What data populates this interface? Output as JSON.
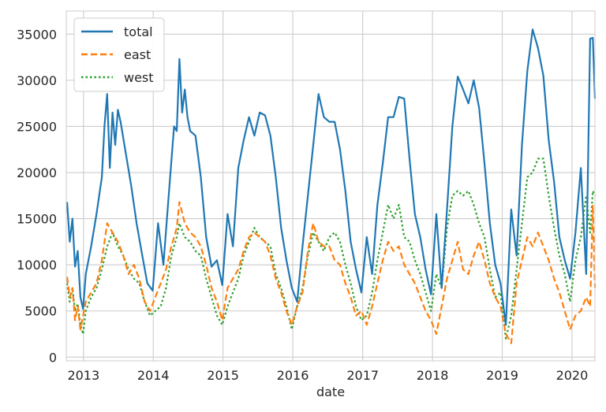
{
  "chart_data": {
    "type": "line",
    "title": "",
    "xlabel": "date",
    "ylabel": "",
    "xlim": [
      "2012-10-03",
      "2020-04-30"
    ],
    "ylim": [
      -400,
      37500
    ],
    "grid": true,
    "legend_position": "top-left",
    "x_ticks": [
      "2013",
      "2014",
      "2015",
      "2016",
      "2017",
      "2018",
      "2019",
      "2020"
    ],
    "y_ticks": [
      0,
      5000,
      10000,
      15000,
      20000,
      25000,
      30000,
      35000
    ],
    "series": [
      {
        "name": "total",
        "color": "#1f77b4",
        "style": "solid",
        "x": [
          "2012-10-07",
          "2012-10-21",
          "2012-11-04",
          "2012-11-18",
          "2012-12-02",
          "2012-12-16",
          "2012-12-30",
          "2013-01-13",
          "2013-02-10",
          "2013-03-10",
          "2013-04-07",
          "2013-04-21",
          "2013-05-05",
          "2013-05-19",
          "2013-06-02",
          "2013-06-16",
          "2013-06-30",
          "2013-07-14",
          "2013-08-11",
          "2013-09-08",
          "2013-10-06",
          "2013-11-03",
          "2013-12-01",
          "2013-12-29",
          "2014-01-26",
          "2014-02-23",
          "2014-03-23",
          "2014-04-20",
          "2014-05-04",
          "2014-05-18",
          "2014-06-01",
          "2014-06-15",
          "2014-06-29",
          "2014-07-13",
          "2014-08-10",
          "2014-09-07",
          "2014-10-05",
          "2014-11-02",
          "2014-11-30",
          "2014-12-28",
          "2015-01-25",
          "2015-02-22",
          "2015-03-22",
          "2015-04-19",
          "2015-05-17",
          "2015-06-14",
          "2015-07-12",
          "2015-08-09",
          "2015-09-06",
          "2015-10-04",
          "2015-11-01",
          "2015-11-29",
          "2015-12-27",
          "2016-01-24",
          "2016-02-21",
          "2016-03-20",
          "2016-04-17",
          "2016-05-15",
          "2016-06-12",
          "2016-07-10",
          "2016-08-07",
          "2016-09-04",
          "2016-10-02",
          "2016-10-30",
          "2016-11-27",
          "2016-12-25",
          "2017-01-22",
          "2017-02-19",
          "2017-03-19",
          "2017-04-16",
          "2017-05-14",
          "2017-06-11",
          "2017-07-09",
          "2017-08-06",
          "2017-09-03",
          "2017-10-01",
          "2017-10-29",
          "2017-11-26",
          "2017-12-24",
          "2018-01-21",
          "2018-02-18",
          "2018-03-18",
          "2018-04-15",
          "2018-05-13",
          "2018-06-10",
          "2018-07-08",
          "2018-08-05",
          "2018-09-02",
          "2018-09-30",
          "2018-10-28",
          "2018-11-25",
          "2018-12-23",
          "2019-01-20",
          "2019-02-17",
          "2019-03-17",
          "2019-04-14",
          "2019-05-12",
          "2019-06-09",
          "2019-07-07",
          "2019-08-04",
          "2019-09-01",
          "2019-09-29",
          "2019-10-27",
          "2019-11-24",
          "2019-12-22",
          "2020-01-19",
          "2020-02-16",
          "2020-03-15",
          "2020-04-05",
          "2020-04-19",
          "2020-04-30"
        ],
        "values": [
          16800,
          12500,
          15000,
          9800,
          11500,
          6500,
          5200,
          9000,
          12000,
          15500,
          19500,
          25000,
          28500,
          20500,
          26500,
          23000,
          26800,
          25500,
          22000,
          18500,
          14500,
          11200,
          8000,
          7200,
          14500,
          10000,
          17500,
          25000,
          24500,
          32300,
          26500,
          29000,
          26000,
          24500,
          24000,
          19500,
          13000,
          9800,
          10500,
          7800,
          15500,
          12000,
          20500,
          23500,
          26000,
          24000,
          26500,
          26200,
          24000,
          19500,
          14000,
          10500,
          7500,
          6000,
          12000,
          17500,
          23000,
          28500,
          26000,
          25500,
          25500,
          22500,
          18000,
          12500,
          9500,
          7000,
          13000,
          9000,
          16500,
          21000,
          26000,
          26000,
          28200,
          28000,
          21500,
          15500,
          13000,
          9500,
          6800,
          15500,
          7500,
          16000,
          25000,
          30400,
          29000,
          27500,
          30000,
          27000,
          21000,
          14500,
          10000,
          8000,
          3500,
          16000,
          11000,
          23000,
          31000,
          35500,
          33500,
          30500,
          23500,
          19000,
          13000,
          10500,
          8500,
          13500,
          20500,
          9000,
          34500,
          34600,
          28000
        ]
      },
      {
        "name": "east",
        "color": "#ff7f0e",
        "style": "dashed",
        "x": [
          "2012-10-07",
          "2012-10-21",
          "2012-11-04",
          "2012-11-18",
          "2012-12-02",
          "2012-12-16",
          "2012-12-30",
          "2013-01-13",
          "2013-02-10",
          "2013-03-10",
          "2013-04-07",
          "2013-05-05",
          "2013-06-02",
          "2013-06-30",
          "2013-07-28",
          "2013-08-25",
          "2013-09-22",
          "2013-10-20",
          "2013-11-17",
          "2013-12-15",
          "2014-01-12",
          "2014-02-09",
          "2014-03-09",
          "2014-04-06",
          "2014-05-04",
          "2014-05-18",
          "2014-06-15",
          "2014-07-13",
          "2014-08-10",
          "2014-09-07",
          "2014-10-05",
          "2014-11-02",
          "2014-11-30",
          "2014-12-28",
          "2015-01-25",
          "2015-02-22",
          "2015-03-22",
          "2015-04-19",
          "2015-05-17",
          "2015-06-14",
          "2015-07-12",
          "2015-08-09",
          "2015-09-06",
          "2015-10-04",
          "2015-11-01",
          "2015-11-29",
          "2015-12-27",
          "2016-01-24",
          "2016-02-21",
          "2016-03-20",
          "2016-04-17",
          "2016-05-15",
          "2016-06-12",
          "2016-07-10",
          "2016-08-07",
          "2016-09-04",
          "2016-10-02",
          "2016-10-30",
          "2016-11-27",
          "2016-12-25",
          "2017-01-22",
          "2017-02-19",
          "2017-03-19",
          "2017-04-16",
          "2017-05-14",
          "2017-06-11",
          "2017-07-09",
          "2017-08-06",
          "2017-09-03",
          "2017-10-01",
          "2017-10-29",
          "2017-11-26",
          "2017-12-24",
          "2018-01-21",
          "2018-02-18",
          "2018-03-18",
          "2018-04-15",
          "2018-05-13",
          "2018-06-10",
          "2018-07-08",
          "2018-08-05",
          "2018-09-02",
          "2018-09-30",
          "2018-10-28",
          "2018-11-25",
          "2018-12-23",
          "2019-01-20",
          "2019-02-17",
          "2019-03-17",
          "2019-04-14",
          "2019-05-12",
          "2019-06-09",
          "2019-07-07",
          "2019-08-04",
          "2019-09-01",
          "2019-09-29",
          "2019-10-27",
          "2019-11-24",
          "2019-12-22",
          "2020-01-19",
          "2020-02-16",
          "2020-03-15",
          "2020-04-05",
          "2020-04-19",
          "2020-04-30"
        ],
        "values": [
          8700,
          6500,
          7500,
          4000,
          5500,
          3000,
          4500,
          6000,
          7000,
          8000,
          10500,
          14500,
          13500,
          12500,
          11000,
          9000,
          10000,
          8500,
          6000,
          5000,
          6500,
          8000,
          9500,
          12000,
          14000,
          16800,
          14500,
          13500,
          13000,
          12000,
          10000,
          7500,
          6000,
          4000,
          7500,
          8500,
          9500,
          11500,
          13000,
          13500,
          13000,
          12500,
          11000,
          8500,
          7000,
          5000,
          3500,
          5500,
          7000,
          11500,
          14500,
          12500,
          12000,
          12000,
          10500,
          10000,
          8000,
          6500,
          4500,
          5000,
          3500,
          5500,
          8000,
          10500,
          12500,
          11500,
          12000,
          10000,
          9000,
          8000,
          6500,
          5000,
          4000,
          2500,
          5500,
          8500,
          10500,
          12500,
          9500,
          9000,
          11000,
          12500,
          10500,
          8000,
          6500,
          5500,
          2500,
          1500,
          8000,
          10500,
          13000,
          12000,
          13500,
          12000,
          10500,
          8500,
          7000,
          5000,
          3000,
          4500,
          5000,
          6500,
          5500,
          16500,
          7500
        ]
      },
      {
        "name": "west",
        "color": "#2ca02c",
        "style": "dotted",
        "x": [
          "2012-10-07",
          "2012-10-21",
          "2012-11-04",
          "2012-11-18",
          "2012-12-02",
          "2012-12-16",
          "2012-12-30",
          "2013-01-13",
          "2013-02-10",
          "2013-03-10",
          "2013-04-07",
          "2013-05-05",
          "2013-06-02",
          "2013-06-30",
          "2013-07-28",
          "2013-08-25",
          "2013-09-22",
          "2013-10-20",
          "2013-11-17",
          "2013-12-15",
          "2014-01-12",
          "2014-02-09",
          "2014-03-09",
          "2014-04-06",
          "2014-05-04",
          "2014-05-18",
          "2014-06-15",
          "2014-07-13",
          "2014-08-10",
          "2014-09-07",
          "2014-10-05",
          "2014-11-02",
          "2014-11-30",
          "2014-12-28",
          "2015-01-25",
          "2015-02-22",
          "2015-03-22",
          "2015-04-19",
          "2015-05-17",
          "2015-06-14",
          "2015-07-12",
          "2015-08-09",
          "2015-09-06",
          "2015-10-04",
          "2015-11-01",
          "2015-11-29",
          "2015-12-27",
          "2016-01-24",
          "2016-02-21",
          "2016-03-20",
          "2016-04-17",
          "2016-05-15",
          "2016-06-12",
          "2016-07-10",
          "2016-08-07",
          "2016-09-04",
          "2016-10-02",
          "2016-10-30",
          "2016-11-27",
          "2016-12-25",
          "2017-01-22",
          "2017-02-19",
          "2017-03-19",
          "2017-04-16",
          "2017-05-14",
          "2017-06-11",
          "2017-07-09",
          "2017-08-06",
          "2017-09-03",
          "2017-10-01",
          "2017-10-29",
          "2017-11-26",
          "2017-12-24",
          "2018-01-21",
          "2018-02-18",
          "2018-03-18",
          "2018-04-15",
          "2018-05-13",
          "2018-06-10",
          "2018-07-08",
          "2018-08-05",
          "2018-09-02",
          "2018-09-30",
          "2018-10-28",
          "2018-11-25",
          "2018-12-23",
          "2019-01-20",
          "2019-02-17",
          "2019-03-17",
          "2019-04-14",
          "2019-05-12",
          "2019-06-09",
          "2019-07-07",
          "2019-08-04",
          "2019-09-01",
          "2019-09-29",
          "2019-10-27",
          "2019-11-24",
          "2019-12-22",
          "2020-01-19",
          "2020-02-16",
          "2020-03-15",
          "2020-04-05",
          "2020-04-19",
          "2020-04-30"
        ],
        "values": [
          8000,
          6000,
          7500,
          5000,
          5800,
          3500,
          2500,
          5000,
          6500,
          7500,
          9500,
          12000,
          13500,
          12000,
          11000,
          9500,
          8500,
          8000,
          6000,
          4500,
          5000,
          5500,
          7500,
          11000,
          13000,
          14500,
          13000,
          12500,
          11500,
          11000,
          8500,
          6500,
          4500,
          3500,
          5500,
          7000,
          8500,
          11000,
          12500,
          14000,
          13000,
          12500,
          12000,
          9000,
          7500,
          5500,
          3000,
          5500,
          7500,
          11000,
          13500,
          12500,
          11500,
          13000,
          13500,
          12500,
          10000,
          8000,
          5500,
          4000,
          4500,
          7000,
          10500,
          13500,
          16500,
          15000,
          16500,
          13000,
          12500,
          10500,
          9000,
          7000,
          5000,
          9000,
          7500,
          14000,
          17500,
          18000,
          17500,
          18000,
          16500,
          14500,
          13000,
          9500,
          6500,
          7000,
          2000,
          4500,
          9500,
          14500,
          19500,
          20000,
          21500,
          21500,
          17500,
          14000,
          11000,
          9000,
          6000,
          10500,
          13000,
          17500,
          13500,
          18000,
          17500
        ]
      }
    ]
  }
}
